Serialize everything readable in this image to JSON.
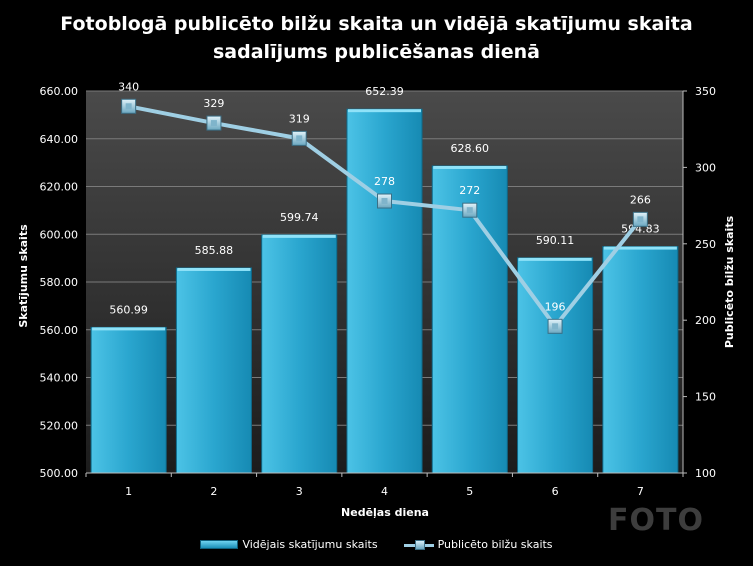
{
  "chart_data": {
    "type": "bar",
    "title_line1": "Fotoblogā publicēto bilžu skaita un vidējā skatījumu skaita",
    "title_line2": "sadalījums publicēšanas dienā",
    "xlabel": "Nedēļas diena",
    "ylabel": "Skatījumu skaits",
    "y2label": "Publicēto bilžu skaits",
    "categories": [
      "1",
      "2",
      "3",
      "4",
      "5",
      "6",
      "7"
    ],
    "ylim": [
      500,
      660
    ],
    "y2lim": [
      100,
      350
    ],
    "yticks": [
      "500.00",
      "520.00",
      "540.00",
      "560.00",
      "580.00",
      "600.00",
      "620.00",
      "640.00",
      "660.00"
    ],
    "y2ticks": [
      "100",
      "150",
      "200",
      "250",
      "300",
      "350"
    ],
    "grid": true,
    "legend_position": "bottom",
    "series": [
      {
        "name": "Vidējais skatījumu skaits",
        "type": "bar",
        "axis": "left",
        "color": "#2aa6cf",
        "values": [
          560.99,
          585.88,
          599.74,
          652.39,
          628.6,
          590.11,
          594.83
        ],
        "labels": [
          "560.99",
          "585.88",
          "599.74",
          "652.39",
          "628.60",
          "590.11",
          "594.83"
        ]
      },
      {
        "name": "Publicēto bilžu skaits",
        "type": "line",
        "axis": "right",
        "color": "#9fcfe4",
        "values": [
          340,
          329,
          319,
          278,
          272,
          196,
          266
        ],
        "labels": [
          "340",
          "329",
          "319",
          "278",
          "272",
          "196",
          "266"
        ]
      }
    ]
  },
  "watermark": "FOTO"
}
